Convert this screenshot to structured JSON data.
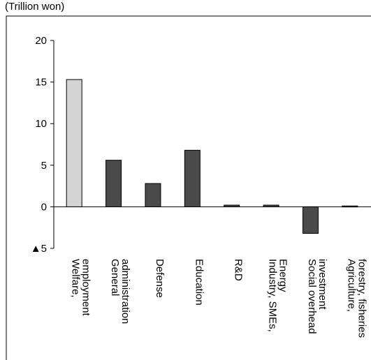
{
  "chart_data": {
    "type": "bar",
    "unit_label": "(Trillion won)",
    "categories": [
      [
        "Welfare,",
        "employment"
      ],
      [
        "General",
        "administration"
      ],
      [
        "Defense"
      ],
      [
        "Education"
      ],
      [
        "R&D"
      ],
      [
        "Industry, SMEs,",
        "Energy"
      ],
      [
        "Social overhead",
        "investment"
      ],
      [
        "Agriculture,",
        "forestry, fisheries"
      ]
    ],
    "values": [
      15.3,
      5.6,
      2.8,
      6.8,
      0.2,
      0.2,
      -3.2,
      0.1
    ],
    "ylim": [
      -5,
      20
    ],
    "yticks": [
      20,
      15,
      10,
      5,
      0,
      -5
    ],
    "ytick_labels": [
      "20",
      "15",
      "10",
      "5",
      "0",
      "▲5"
    ],
    "colors": {
      "highlight": "#d4d4d4",
      "bar": "#4a4a4a",
      "edge": "#000000"
    },
    "grid": false
  }
}
